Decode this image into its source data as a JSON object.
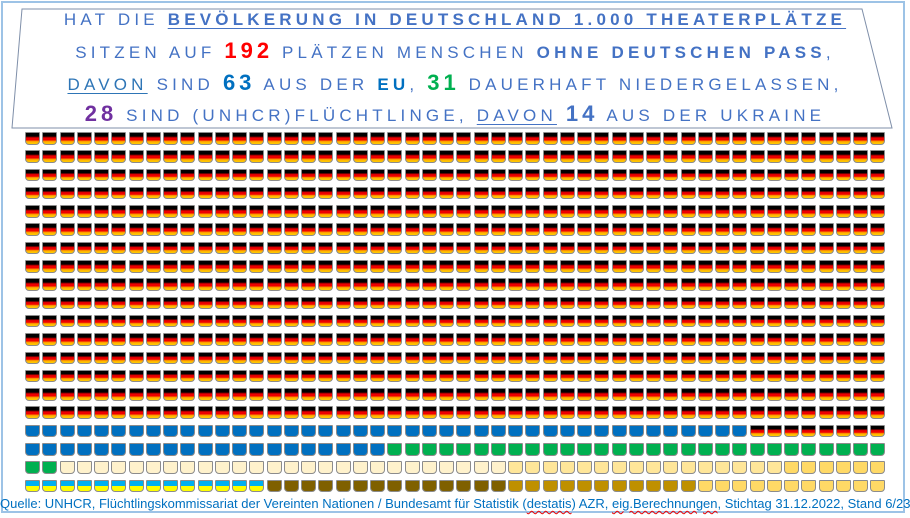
{
  "header": {
    "line1": {
      "a": "HAT DIE ",
      "b": "BEVÖLKERUNG IN DEUTSCHLAND 1.000 THEATERPLÄTZE"
    },
    "line2": {
      "a": "SITZEN AUF ",
      "num": "192",
      "b": " PLÄTZEN MENSCHEN ",
      "c": "OHNE DEUTSCHEN PASS",
      "d": ","
    },
    "line3": {
      "a": "DAVON",
      "b": " SIND ",
      "num1": "63",
      "c": " AUS DER ",
      "eu": "EU",
      "d": ", ",
      "num2": "31",
      "e": " DAUERHAFT NIEDERGELASSEN,"
    },
    "line4": {
      "num1": "28",
      "a": " SIND (UNHCR)FLÜCHTLINGE, ",
      "b": "DAVON",
      "c": " ",
      "num2": "14",
      "d": " AUS DER UKRAINE"
    }
  },
  "colors": {
    "text": "#4472C4",
    "red": "#FF0000",
    "eu_blue": "#0070C0",
    "green": "#00B050",
    "purple": "#7030A0",
    "cream": "#FFF2CC",
    "pale_yellow": "#FFE699",
    "yellow": "#FFD966",
    "dark_brown": "#7F6000",
    "gold": "#BF9000"
  },
  "seat_rows": [
    [
      {
        "type": "de",
        "count": 50
      }
    ],
    [
      {
        "type": "de",
        "count": 50
      }
    ],
    [
      {
        "type": "de",
        "count": 50
      }
    ],
    [
      {
        "type": "de",
        "count": 50
      }
    ],
    [
      {
        "type": "de",
        "count": 50
      }
    ],
    [
      {
        "type": "de",
        "count": 50
      }
    ],
    [
      {
        "type": "de",
        "count": 50
      }
    ],
    [
      {
        "type": "de",
        "count": 50
      }
    ],
    [
      {
        "type": "de",
        "count": 50
      }
    ],
    [
      {
        "type": "de",
        "count": 50
      }
    ],
    [
      {
        "type": "de",
        "count": 50
      }
    ],
    [
      {
        "type": "de",
        "count": 50
      }
    ],
    [
      {
        "type": "de",
        "count": 50
      }
    ],
    [
      {
        "type": "de",
        "count": 50
      }
    ],
    [
      {
        "type": "de",
        "count": 50
      }
    ],
    [
      {
        "type": "de",
        "count": 50
      }
    ],
    [
      {
        "type": "eu_blue",
        "count": 42
      },
      {
        "type": "de",
        "count": 8
      }
    ],
    [
      {
        "type": "eu_blue",
        "count": 21
      },
      {
        "type": "green",
        "count": 29
      }
    ],
    [
      {
        "type": "green",
        "count": 2
      },
      {
        "type": "cream",
        "count": 26
      },
      {
        "type": "pale_yellow",
        "count": 16
      },
      {
        "type": "yellow",
        "count": 6
      }
    ],
    [
      {
        "type": "ua",
        "count": 14
      },
      {
        "type": "dark_brown",
        "count": 14
      },
      {
        "type": "gold",
        "count": 11
      },
      {
        "type": "yellow",
        "count": 11
      }
    ]
  ],
  "footer": {
    "a": "Quelle: UNHCR, Flüchtlingskommissariat der Vereinten Nationen / Bundesamt für Statistik (",
    "b": "destatis",
    "c": ") AZR, ",
    "d": "eig.Berechnungen",
    "e": ", Stichtag 31.12.2022, Stand 6/23"
  }
}
